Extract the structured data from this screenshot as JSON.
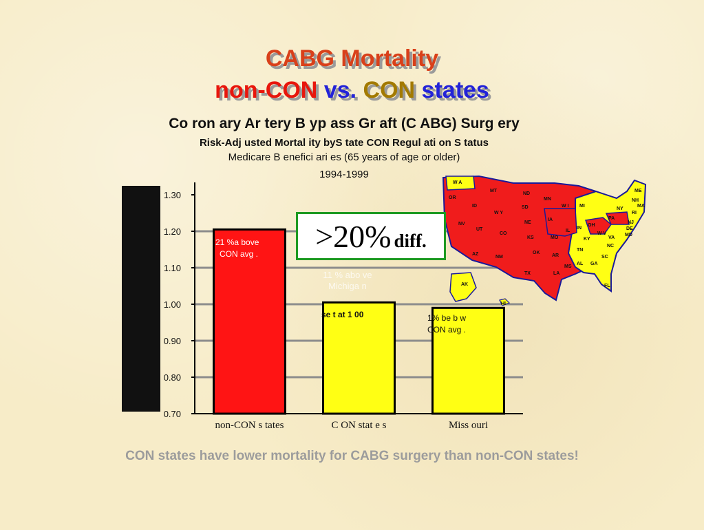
{
  "slide": {
    "title_line1": "CABG Mortality",
    "title_line2": {
      "part1": "non-CON",
      "part2": "vs.",
      "part3": "CON",
      "part4": "states"
    },
    "footer": "CON states have lower mortality for CABG surgery than non-CON states!"
  },
  "callout": {
    "big": ">20%",
    "small": "diff."
  },
  "bar_notes": {
    "note1": [
      "21 %a bove",
      "CON avg ."
    ],
    "note2": "se t at 1 00",
    "note3": [
      "1% be b w",
      "CON avg ."
    ],
    "faint": [
      "11 % abo ve",
      "Michiga n"
    ]
  },
  "map": {
    "labels": {
      "wa": "W A",
      "or": "OR",
      "mt": "MT",
      "nd": "ND",
      "mn": "MN",
      "id": "ID",
      "wy": "W Y",
      "sd": "SD",
      "wi": "W I",
      "mi": "MI",
      "ny": "NY",
      "me": "ME",
      "nh": "NH",
      "ma": "MA",
      "ri": "RI",
      "nj": "NJ",
      "de": "DE",
      "md": "MD",
      "nv": "NV",
      "ut": "UT",
      "co": "CO",
      "ne": "NE",
      "ia": "IA",
      "il": "IL",
      "in": "IN",
      "oh": "OH",
      "pa": "PA",
      "wv": "W V",
      "va": "VA",
      "ks": "KS",
      "mo": "MO",
      "ky": "KY",
      "az": "AZ",
      "nm": "NM",
      "ok": "OK",
      "ar": "AR",
      "tn": "TN",
      "nc": "NC",
      "sc": "SC",
      "ms": "MS",
      "al": "AL",
      "ga": "GA",
      "tx": "TX",
      "la": "LA",
      "fl": "FL",
      "ak": "AK",
      "hi": "HI"
    }
  },
  "chart_data": {
    "type": "bar",
    "title": "Co ron ary Ar tery B yp ass Gr aft (C ABG) Surg ery",
    "subtitle": "Risk-Adj usted Mortal ity byS tate CON Regul ati on S tatus",
    "subtitle2": "Medicare B enefici ari es (65 years of age or older)",
    "subtitle3": "1994-1999",
    "ylabel": "",
    "categories": [
      "non-CON s tates",
      "C ON stat e s",
      "Miss ouri"
    ],
    "values": [
      1.205,
      1.005,
      0.99
    ],
    "colors": [
      "#ff1414",
      "#ffff14",
      "#ffff14"
    ],
    "ylim": [
      0.7,
      1.3
    ],
    "yticks": [
      "1.30",
      "1.20",
      "1.10",
      "1.00",
      "0.90",
      "0.80",
      "0.70"
    ],
    "grid": true
  }
}
